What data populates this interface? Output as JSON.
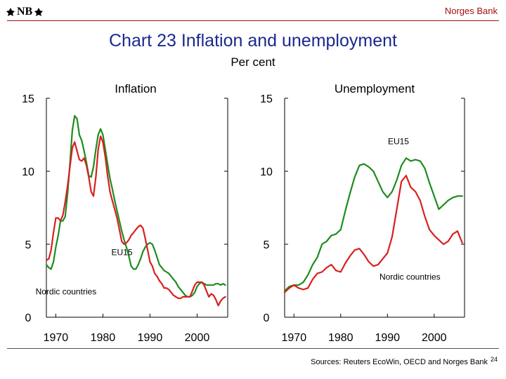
{
  "logo_text": "NB",
  "brand": "Norges Bank",
  "title": "Chart 23 Inflation and unemployment",
  "subtitle": "Per cent",
  "sources": "Sources: Reuters EcoWin, OECD and Norges Bank",
  "page_number": "24",
  "colors": {
    "eu15": "#1e8c1e",
    "nordic": "#d82020",
    "title": "#1a2a8c",
    "brand": "#a01010"
  },
  "chart_data": [
    {
      "type": "line",
      "title": "Inflation",
      "xlim": [
        1968,
        2006.5
      ],
      "ylim": [
        0,
        15
      ],
      "xticks": [
        1970,
        1980,
        1990,
        2000
      ],
      "yticks": [
        0,
        5,
        10,
        15
      ],
      "series": [
        {
          "name": "EU15",
          "x": [
            1968,
            1968.5,
            1969,
            1969.5,
            1970,
            1970.5,
            1971,
            1971.5,
            1972,
            1972.5,
            1973,
            1973.5,
            1974,
            1974.5,
            1975,
            1975.5,
            1976,
            1976.5,
            1977,
            1977.5,
            1978,
            1978.5,
            1979,
            1979.5,
            1980,
            1980.5,
            1981,
            1981.5,
            1982,
            1982.5,
            1983,
            1983.5,
            1984,
            1984.5,
            1985,
            1985.5,
            1986,
            1986.5,
            1987,
            1987.5,
            1988,
            1988.5,
            1989,
            1989.5,
            1990,
            1990.5,
            1991,
            1991.5,
            1992,
            1992.5,
            1993,
            1993.5,
            1994,
            1994.5,
            1995,
            1995.5,
            1996,
            1996.5,
            1997,
            1997.5,
            1998,
            1998.5,
            1999,
            1999.5,
            2000,
            2000.5,
            2001,
            2001.5,
            2002,
            2002.5,
            2003,
            2003.5,
            2004,
            2004.5,
            2005,
            2005.5,
            2006
          ],
          "values": [
            3.6,
            3.4,
            3.3,
            3.8,
            4.8,
            5.6,
            6.6,
            6.6,
            6.9,
            8.5,
            10.5,
            12.8,
            13.8,
            13.6,
            12.5,
            12.1,
            11.4,
            10.6,
            9.7,
            9.6,
            10.3,
            11.5,
            12.5,
            12.9,
            12.5,
            11.5,
            10.5,
            9.5,
            8.8,
            8.0,
            7.3,
            6.6,
            5.9,
            5.3,
            4.8,
            4.2,
            3.5,
            3.3,
            3.3,
            3.6,
            4.0,
            4.5,
            4.8,
            5.0,
            5.1,
            5.0,
            4.6,
            4.1,
            3.6,
            3.4,
            3.2,
            3.1,
            3.0,
            2.8,
            2.6,
            2.4,
            2.1,
            1.9,
            1.7,
            1.5,
            1.4,
            1.4,
            1.5,
            1.7,
            2.1,
            2.3,
            2.4,
            2.3,
            2.2,
            2.2,
            2.2,
            2.2,
            2.3,
            2.3,
            2.2,
            2.3,
            2.2
          ]
        },
        {
          "name": "Nordic countries",
          "x": [
            1968,
            1968.5,
            1969,
            1969.5,
            1970,
            1970.5,
            1971,
            1971.5,
            1972,
            1972.5,
            1973,
            1973.5,
            1974,
            1974.5,
            1975,
            1975.5,
            1976,
            1976.5,
            1977,
            1977.5,
            1978,
            1978.5,
            1979,
            1979.5,
            1980,
            1980.5,
            1981,
            1981.5,
            1982,
            1982.5,
            1983,
            1983.5,
            1984,
            1984.5,
            1985,
            1985.5,
            1986,
            1986.5,
            1987,
            1987.5,
            1988,
            1988.5,
            1989,
            1989.5,
            1990,
            1990.5,
            1991,
            1991.5,
            1992,
            1992.5,
            1993,
            1993.5,
            1994,
            1994.5,
            1995,
            1995.5,
            1996,
            1996.5,
            1997,
            1997.5,
            1998,
            1998.5,
            1999,
            1999.5,
            2000,
            2000.5,
            2001,
            2001.5,
            2002,
            2002.5,
            2003,
            2003.5,
            2004,
            2004.5,
            2005,
            2005.5,
            2006
          ],
          "values": [
            3.9,
            4.0,
            4.6,
            5.8,
            6.8,
            6.8,
            6.6,
            7.0,
            7.9,
            9.0,
            10.3,
            11.6,
            12.0,
            11.4,
            10.8,
            10.7,
            10.9,
            10.4,
            9.6,
            8.6,
            8.3,
            9.6,
            11.5,
            12.4,
            12.0,
            11.0,
            9.7,
            8.6,
            8.0,
            7.4,
            6.8,
            6.0,
            5.2,
            5.0,
            5.1,
            5.3,
            5.6,
            5.8,
            6.0,
            6.2,
            6.3,
            6.1,
            5.4,
            4.6,
            3.8,
            3.5,
            3.0,
            2.8,
            2.5,
            2.3,
            2.0,
            2.0,
            1.9,
            1.7,
            1.5,
            1.4,
            1.3,
            1.3,
            1.4,
            1.4,
            1.4,
            1.4,
            1.8,
            2.2,
            2.4,
            2.4,
            2.4,
            2.2,
            1.8,
            1.4,
            1.6,
            1.5,
            1.2,
            0.8,
            1.1,
            1.3,
            1.4
          ]
        }
      ],
      "annotations": [
        {
          "text": "EU15",
          "x": 1981.8,
          "y": 4.25
        },
        {
          "text": "Nordic countries",
          "x": 1965.7,
          "y": 1.57
        }
      ]
    },
    {
      "type": "line",
      "title": "Unemployment",
      "xlim": [
        1968,
        2006.5
      ],
      "ylim": [
        0,
        15
      ],
      "xticks": [
        1970,
        1980,
        1990,
        2000
      ],
      "yticks": [
        0,
        5,
        10,
        15
      ],
      "series": [
        {
          "name": "EU15",
          "x": [
            1968,
            1969,
            1970,
            1971,
            1972,
            1973,
            1974,
            1975,
            1976,
            1977,
            1978,
            1979,
            1980,
            1981,
            1982,
            1983,
            1984,
            1985,
            1986,
            1987,
            1988,
            1989,
            1990,
            1991,
            1992,
            1993,
            1994,
            1995,
            1996,
            1997,
            1998,
            1999,
            2000,
            2001,
            2002,
            2003,
            2004,
            2005,
            2006
          ],
          "values": [
            1.8,
            2.1,
            2.2,
            2.2,
            2.4,
            2.9,
            3.6,
            4.1,
            5.0,
            5.2,
            5.6,
            5.7,
            6.0,
            7.3,
            8.5,
            9.6,
            10.4,
            10.5,
            10.3,
            10.0,
            9.3,
            8.6,
            8.2,
            8.6,
            9.4,
            10.4,
            10.9,
            10.7,
            10.8,
            10.7,
            10.2,
            9.2,
            8.3,
            7.4,
            7.7,
            8.0,
            8.2,
            8.3,
            8.3
          ]
        },
        {
          "name": "Nordic countries",
          "x": [
            1968,
            1969,
            1970,
            1971,
            1972,
            1973,
            1974,
            1975,
            1976,
            1977,
            1978,
            1979,
            1980,
            1981,
            1982,
            1983,
            1984,
            1985,
            1986,
            1987,
            1988,
            1989,
            1990,
            1991,
            1992,
            1993,
            1994,
            1995,
            1996,
            1997,
            1998,
            1999,
            2000,
            2001,
            2002,
            2003,
            2004,
            2005,
            2006
          ],
          "values": [
            1.7,
            2.0,
            2.2,
            2.0,
            1.9,
            2.0,
            2.6,
            3.0,
            3.1,
            3.4,
            3.6,
            3.2,
            3.1,
            3.7,
            4.2,
            4.6,
            4.7,
            4.3,
            3.8,
            3.5,
            3.6,
            4.0,
            4.4,
            5.5,
            7.4,
            9.3,
            9.7,
            8.9,
            8.6,
            8.0,
            6.9,
            6.0,
            5.6,
            5.3,
            5.0,
            5.2,
            5.7,
            5.9,
            5.1
          ]
        }
      ],
      "annotations": [
        {
          "text": "EU15",
          "x": 1990.1,
          "y": 11.85
        },
        {
          "text": "Nordic countries",
          "x": 1988.3,
          "y": 2.57
        }
      ]
    }
  ]
}
